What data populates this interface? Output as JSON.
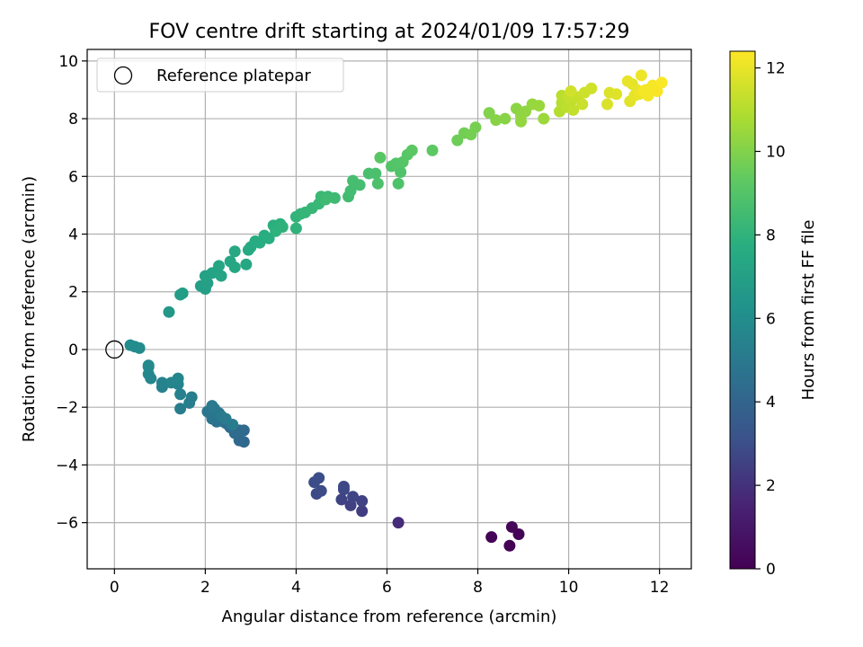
{
  "chart_data": {
    "type": "scatter",
    "title": "FOV centre drift starting at 2024/01/09 17:57:29",
    "xlabel": "Angular distance from reference (arcmin)",
    "ylabel": "Rotation from reference (arcmin)",
    "colorbar_label": "Hours from first FF file",
    "xlim": [
      -0.6,
      12.7
    ],
    "ylim": [
      -7.6,
      10.4
    ],
    "clim": [
      0,
      12.4
    ],
    "colormap": "viridis",
    "grid": true,
    "legend_position": "top-left",
    "x_ticks": [
      0,
      2,
      4,
      6,
      8,
      10,
      12
    ],
    "y_ticks": [
      -6,
      -4,
      -2,
      0,
      2,
      4,
      6,
      8,
      10
    ],
    "colorbar_ticks": [
      0,
      2,
      4,
      6,
      8,
      10,
      12
    ],
    "reference": {
      "label": "Reference platepar",
      "x": 0,
      "y": 0
    },
    "points": [
      [
        8.7,
        -6.8,
        0.05
      ],
      [
        8.3,
        -6.5,
        0.1
      ],
      [
        8.9,
        -6.4,
        0.15
      ],
      [
        8.75,
        -6.15,
        0.2
      ],
      [
        6.25,
        -6.0,
        1.8
      ],
      [
        5.45,
        -5.6,
        2.4
      ],
      [
        5.2,
        -5.4,
        2.5
      ],
      [
        5.45,
        -5.25,
        2.55
      ],
      [
        5.0,
        -5.2,
        2.6
      ],
      [
        5.25,
        -5.1,
        2.65
      ],
      [
        5.05,
        -4.85,
        2.7
      ],
      [
        5.05,
        -4.75,
        2.75
      ],
      [
        4.45,
        -5.0,
        2.8
      ],
      [
        4.55,
        -4.9,
        2.85
      ],
      [
        4.4,
        -4.6,
        2.9
      ],
      [
        4.5,
        -4.45,
        2.95
      ],
      [
        2.85,
        -3.2,
        4.1
      ],
      [
        2.75,
        -3.15,
        4.15
      ],
      [
        2.85,
        -2.8,
        4.2
      ],
      [
        2.75,
        -2.8,
        4.25
      ],
      [
        2.65,
        -2.9,
        4.3
      ],
      [
        2.55,
        -2.7,
        4.35
      ],
      [
        2.5,
        -2.6,
        4.4
      ],
      [
        2.45,
        -2.55,
        4.45
      ],
      [
        2.4,
        -2.5,
        4.5
      ],
      [
        2.35,
        -2.45,
        4.55
      ],
      [
        2.3,
        -2.4,
        4.6
      ],
      [
        2.25,
        -2.5,
        4.65
      ],
      [
        2.2,
        -2.3,
        4.7
      ],
      [
        2.15,
        -2.4,
        4.75
      ],
      [
        2.1,
        -2.2,
        4.8
      ],
      [
        2.05,
        -2.15,
        4.85
      ],
      [
        2.3,
        -2.2,
        4.9
      ],
      [
        2.2,
        -2.05,
        4.95
      ],
      [
        2.15,
        -1.95,
        5.0
      ],
      [
        2.35,
        -2.3,
        5.05
      ],
      [
        2.45,
        -2.4,
        5.1
      ],
      [
        2.6,
        -2.6,
        5.15
      ],
      [
        1.45,
        -2.05,
        5.2
      ],
      [
        1.65,
        -1.85,
        5.25
      ],
      [
        1.7,
        -1.65,
        5.3
      ],
      [
        1.45,
        -1.55,
        5.35
      ],
      [
        1.05,
        -1.3,
        5.4
      ],
      [
        1.05,
        -1.15,
        5.45
      ],
      [
        1.4,
        -1.2,
        5.5
      ],
      [
        1.25,
        -1.15,
        5.55
      ],
      [
        1.4,
        -1.0,
        5.6
      ],
      [
        0.8,
        -1.0,
        5.65
      ],
      [
        0.75,
        -0.85,
        5.7
      ],
      [
        0.75,
        -0.6,
        5.75
      ],
      [
        0.75,
        -0.55,
        5.8
      ],
      [
        0.55,
        0.05,
        5.9
      ],
      [
        0.45,
        0.1,
        5.95
      ],
      [
        0.35,
        0.15,
        6.0
      ],
      [
        1.2,
        1.3,
        6.6
      ],
      [
        1.45,
        1.9,
        6.8
      ],
      [
        1.5,
        1.95,
        6.85
      ],
      [
        1.9,
        2.2,
        6.9
      ],
      [
        2.0,
        2.1,
        6.95
      ],
      [
        2.05,
        2.3,
        7.0
      ],
      [
        2.0,
        2.55,
        7.05
      ],
      [
        2.15,
        2.65,
        7.1
      ],
      [
        2.25,
        2.7,
        7.15
      ],
      [
        2.35,
        2.55,
        7.2
      ],
      [
        2.3,
        2.9,
        7.25
      ],
      [
        2.55,
        3.05,
        7.3
      ],
      [
        2.65,
        2.85,
        7.35
      ],
      [
        2.9,
        2.95,
        7.4
      ],
      [
        2.65,
        3.4,
        7.45
      ],
      [
        2.95,
        3.45,
        7.5
      ],
      [
        3.0,
        3.55,
        7.55
      ],
      [
        3.1,
        3.75,
        7.6
      ],
      [
        3.2,
        3.7,
        7.65
      ],
      [
        3.3,
        3.95,
        7.7
      ],
      [
        3.4,
        3.85,
        7.75
      ],
      [
        3.5,
        4.3,
        7.8
      ],
      [
        3.65,
        4.35,
        7.85
      ],
      [
        3.55,
        4.1,
        7.9
      ],
      [
        3.7,
        4.25,
        7.95
      ],
      [
        4.0,
        4.2,
        8.0
      ],
      [
        4.0,
        4.6,
        8.05
      ],
      [
        4.1,
        4.7,
        8.1
      ],
      [
        4.2,
        4.75,
        8.15
      ],
      [
        4.35,
        4.9,
        8.2
      ],
      [
        4.5,
        5.05,
        8.25
      ],
      [
        4.55,
        5.3,
        8.3
      ],
      [
        4.7,
        5.3,
        8.35
      ],
      [
        4.85,
        5.25,
        8.4
      ],
      [
        4.65,
        5.2,
        8.45
      ],
      [
        5.15,
        5.3,
        8.5
      ],
      [
        5.2,
        5.5,
        8.55
      ],
      [
        5.4,
        5.7,
        8.6
      ],
      [
        5.25,
        5.85,
        8.65
      ],
      [
        5.6,
        6.1,
        8.7
      ],
      [
        5.75,
        6.1,
        8.75
      ],
      [
        5.8,
        5.75,
        8.8
      ],
      [
        6.25,
        5.75,
        8.85
      ],
      [
        6.3,
        6.15,
        8.9
      ],
      [
        6.1,
        6.35,
        8.95
      ],
      [
        6.2,
        6.45,
        9.0
      ],
      [
        6.35,
        6.5,
        9.05
      ],
      [
        6.45,
        6.75,
        9.1
      ],
      [
        5.85,
        6.65,
        9.15
      ],
      [
        6.55,
        6.9,
        9.2
      ],
      [
        7.0,
        6.9,
        9.25
      ],
      [
        7.55,
        7.25,
        9.6
      ],
      [
        7.7,
        7.5,
        9.7
      ],
      [
        7.85,
        7.45,
        9.75
      ],
      [
        7.95,
        7.7,
        9.8
      ],
      [
        8.25,
        8.2,
        10.0
      ],
      [
        8.4,
        7.95,
        10.1
      ],
      [
        8.6,
        8.0,
        10.15
      ],
      [
        8.85,
        8.35,
        10.2
      ],
      [
        8.95,
        8.1,
        10.25
      ],
      [
        9.05,
        8.25,
        10.3
      ],
      [
        8.95,
        7.9,
        10.35
      ],
      [
        9.2,
        8.5,
        10.4
      ],
      [
        9.35,
        8.45,
        10.45
      ],
      [
        9.45,
        8.0,
        10.5
      ],
      [
        9.8,
        8.25,
        11.0
      ],
      [
        9.85,
        8.55,
        11.05
      ],
      [
        9.85,
        8.8,
        11.1
      ],
      [
        9.95,
        8.4,
        11.15
      ],
      [
        10.05,
        8.6,
        11.2
      ],
      [
        10.1,
        8.3,
        11.25
      ],
      [
        10.0,
        8.75,
        11.3
      ],
      [
        10.2,
        8.75,
        11.35
      ],
      [
        10.3,
        8.5,
        11.4
      ],
      [
        10.35,
        8.9,
        11.45
      ],
      [
        10.5,
        9.05,
        11.5
      ],
      [
        10.05,
        8.95,
        11.55
      ],
      [
        10.85,
        8.5,
        11.7
      ],
      [
        10.9,
        8.9,
        11.75
      ],
      [
        11.05,
        8.85,
        11.8
      ],
      [
        11.35,
        8.6,
        11.85
      ],
      [
        11.4,
        9.2,
        11.9
      ],
      [
        11.45,
        8.8,
        11.95
      ],
      [
        11.5,
        9.0,
        12.0
      ],
      [
        11.55,
        8.85,
        12.05
      ],
      [
        11.6,
        9.5,
        12.1
      ],
      [
        11.7,
        9.0,
        12.15
      ],
      [
        11.75,
        8.8,
        12.2
      ],
      [
        11.85,
        9.15,
        12.25
      ],
      [
        11.95,
        8.95,
        12.3
      ],
      [
        12.05,
        9.25,
        12.35
      ],
      [
        11.3,
        9.3,
        12.0
      ],
      [
        11.65,
        8.95,
        12.25
      ]
    ]
  }
}
